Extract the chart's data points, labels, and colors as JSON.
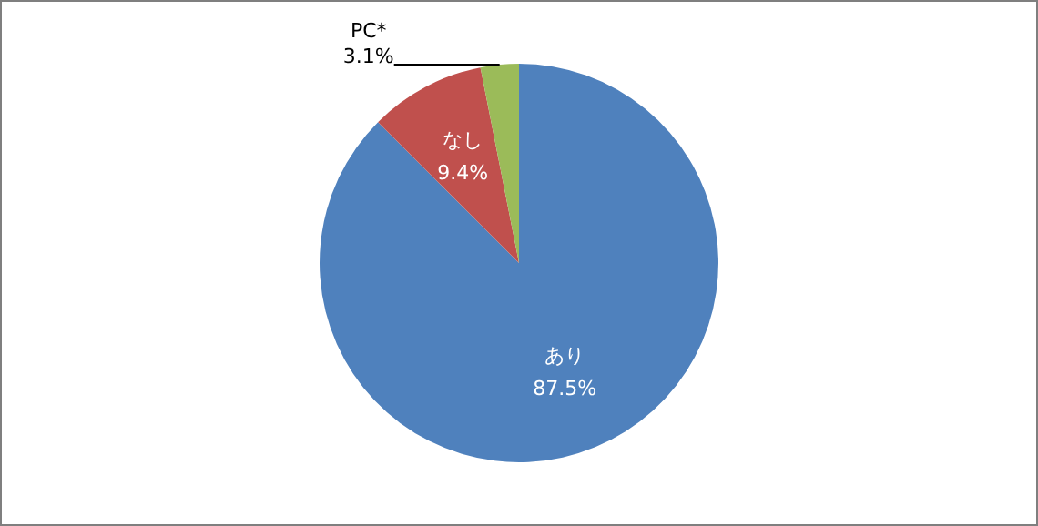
{
  "chart_data": {
    "type": "pie",
    "categories": [
      "あり",
      "なし",
      "PC*"
    ],
    "values": [
      87.5,
      9.4,
      3.1
    ],
    "value_labels": [
      "87.5%",
      "9.4%",
      "3.1%"
    ],
    "colors": [
      "#4f81bd",
      "#c0504d",
      "#9bbb59"
    ],
    "legend": false
  }
}
